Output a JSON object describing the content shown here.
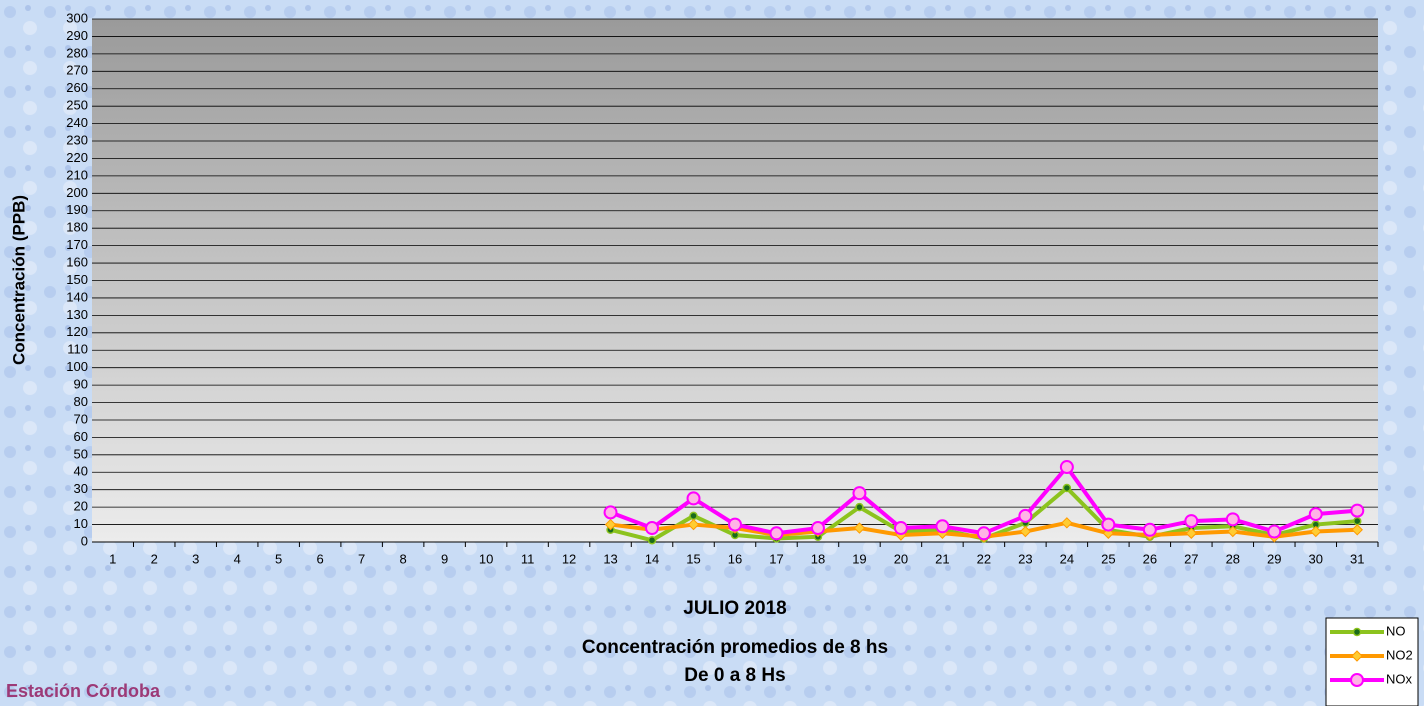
{
  "chart_data": {
    "type": "line",
    "title_lines": [
      "JULIO 2018",
      "Concentración promedios de 8 hs",
      "De 0 a 8 Hs"
    ],
    "footer": "Estación Córdoba",
    "y_label": "Concentración  (PPB)",
    "categories": [
      "1",
      "2",
      "3",
      "4",
      "5",
      "6",
      "7",
      "8",
      "9",
      "10",
      "11",
      "12",
      "13",
      "14",
      "15",
      "16",
      "17",
      "18",
      "19",
      "20",
      "21",
      "22",
      "23",
      "24",
      "25",
      "26",
      "27",
      "28",
      "29",
      "30",
      "31"
    ],
    "series": [
      {
        "name": "NO",
        "color": "#8cc31e",
        "marker": "dot",
        "marker_color": "#1a6b1a",
        "values": [
          null,
          null,
          null,
          null,
          null,
          null,
          null,
          null,
          null,
          null,
          null,
          null,
          7,
          1,
          15,
          4,
          2,
          3,
          20,
          6,
          7,
          2,
          11,
          31,
          7,
          3,
          8,
          9,
          4,
          10,
          12
        ]
      },
      {
        "name": "NO2",
        "color": "#ff9900",
        "marker": "diamond",
        "marker_color": "#ffcc33",
        "values": [
          null,
          null,
          null,
          null,
          null,
          null,
          null,
          null,
          null,
          null,
          null,
          null,
          10,
          7,
          10,
          8,
          4,
          6,
          8,
          4,
          5,
          3,
          6,
          11,
          5,
          4,
          5,
          6,
          3,
          6,
          7
        ]
      },
      {
        "name": "NOx",
        "color": "#ff00ff",
        "marker": "circle",
        "marker_color": "#ffb3e6",
        "values": [
          null,
          null,
          null,
          null,
          null,
          null,
          null,
          null,
          null,
          null,
          null,
          null,
          17,
          8,
          25,
          10,
          5,
          8,
          28,
          8,
          9,
          5,
          15,
          43,
          10,
          7,
          12,
          13,
          6,
          16,
          18
        ]
      }
    ],
    "ylim": [
      0,
      300
    ],
    "yticks": [
      0,
      10,
      20,
      30,
      40,
      50,
      60,
      70,
      80,
      90,
      100,
      110,
      120,
      130,
      140,
      150,
      160,
      170,
      180,
      190,
      200,
      210,
      220,
      230,
      240,
      250,
      260,
      270,
      280,
      290,
      300
    ],
    "grid": true,
    "legend": "bottom-right"
  }
}
